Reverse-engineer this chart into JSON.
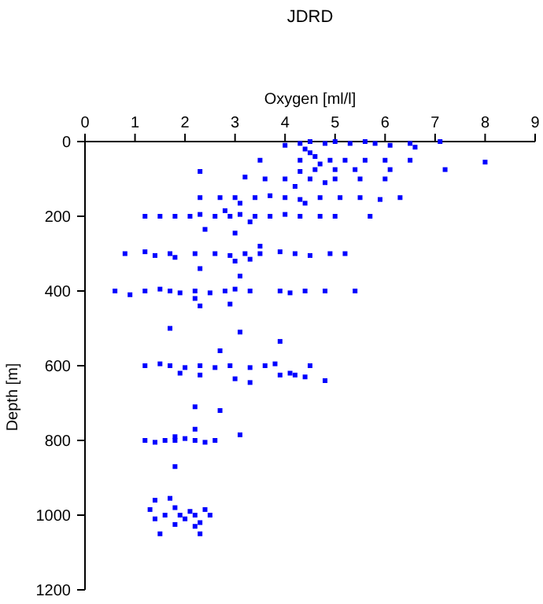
{
  "chart_data": {
    "type": "scatter",
    "title": "JDRD",
    "xlabel": "Oxygen [ml/l]",
    "ylabel": "Depth [m]",
    "xlim": [
      0,
      9
    ],
    "xticks": [
      0,
      1,
      2,
      3,
      4,
      5,
      6,
      7,
      8,
      9
    ],
    "ylim": [
      1200,
      0
    ],
    "yticks": [
      0,
      200,
      400,
      600,
      800,
      1000,
      1200
    ],
    "marker": "square",
    "series": [
      {
        "color": "#0000ff",
        "x": [
          4.0,
          4.3,
          4.5,
          4.8,
          5.0,
          5.3,
          5.6,
          5.8,
          6.1,
          6.5,
          6.6,
          7.1,
          4.3,
          4.6,
          4.9,
          5.2,
          5.6,
          6.0,
          6.5,
          8.0,
          3.5,
          4.5,
          4.4,
          4.7,
          2.3,
          4.3,
          4.6,
          5.0,
          5.4,
          6.1,
          7.2,
          3.2,
          3.6,
          4.0,
          4.5,
          5.0,
          5.5,
          6.0,
          4.2,
          4.8,
          2.3,
          2.7,
          3.0,
          3.4,
          3.7,
          4.0,
          4.3,
          4.7,
          5.1,
          5.5,
          5.9,
          6.3,
          3.1,
          4.4,
          1.2,
          1.5,
          1.8,
          2.1,
          2.3,
          2.6,
          2.9,
          3.1,
          3.4,
          3.7,
          4.0,
          4.3,
          4.7,
          5.0,
          5.7,
          2.8,
          3.3,
          2.4,
          3.0,
          0.8,
          1.2,
          1.4,
          1.7,
          1.8,
          2.2,
          2.6,
          2.9,
          3.2,
          3.5,
          3.9,
          4.2,
          4.5,
          4.9,
          5.2,
          2.3,
          3.0,
          3.3,
          3.1,
          3.5,
          0.6,
          0.9,
          1.2,
          1.5,
          1.7,
          1.9,
          2.2,
          2.5,
          2.8,
          3.0,
          3.3,
          3.9,
          4.1,
          4.4,
          4.8,
          5.4,
          2.3,
          2.9,
          2.2,
          1.7,
          3.1,
          3.9,
          2.7,
          1.2,
          1.5,
          1.7,
          2.0,
          2.3,
          2.6,
          2.9,
          3.3,
          3.6,
          3.8,
          4.5,
          4.1,
          1.9,
          2.3,
          3.0,
          3.3,
          3.9,
          4.2,
          4.4,
          4.8,
          2.2,
          2.7,
          1.8,
          2.2,
          3.1,
          1.2,
          1.4,
          1.6,
          1.8,
          2.0,
          2.2,
          2.4,
          2.6,
          1.8,
          1.3,
          1.4,
          1.4,
          1.6,
          1.7,
          1.8,
          1.9,
          2.0,
          2.1,
          2.2,
          2.3,
          2.4,
          2.5,
          1.5,
          2.3,
          2.2,
          1.8
        ],
        "values": [
          10,
          5,
          0,
          5,
          0,
          5,
          0,
          5,
          10,
          5,
          15,
          0,
          50,
          40,
          50,
          50,
          50,
          50,
          50,
          55,
          50,
          30,
          20,
          60,
          80,
          80,
          75,
          75,
          75,
          75,
          75,
          95,
          100,
          100,
          100,
          100,
          100,
          100,
          120,
          110,
          150,
          150,
          150,
          150,
          145,
          150,
          155,
          150,
          150,
          150,
          155,
          150,
          165,
          165,
          200,
          200,
          200,
          200,
          195,
          200,
          200,
          195,
          200,
          200,
          195,
          200,
          200,
          200,
          200,
          185,
          215,
          235,
          245,
          300,
          295,
          305,
          300,
          310,
          300,
          300,
          305,
          300,
          300,
          295,
          300,
          305,
          300,
          300,
          340,
          320,
          315,
          360,
          280,
          400,
          410,
          400,
          395,
          400,
          405,
          400,
          405,
          400,
          395,
          400,
          400,
          405,
          400,
          400,
          400,
          440,
          435,
          420,
          500,
          510,
          535,
          560,
          600,
          595,
          600,
          605,
          600,
          605,
          600,
          605,
          600,
          595,
          600,
          620,
          620,
          625,
          635,
          645,
          625,
          625,
          630,
          640,
          710,
          720,
          790,
          770,
          785,
          800,
          805,
          800,
          800,
          795,
          800,
          805,
          800,
          870,
          985,
          960,
          1010,
          1000,
          955,
          980,
          1000,
          1010,
          990,
          1000,
          1020,
          985,
          1000,
          1050,
          1050,
          1030,
          1025
        ]
      }
    ]
  }
}
